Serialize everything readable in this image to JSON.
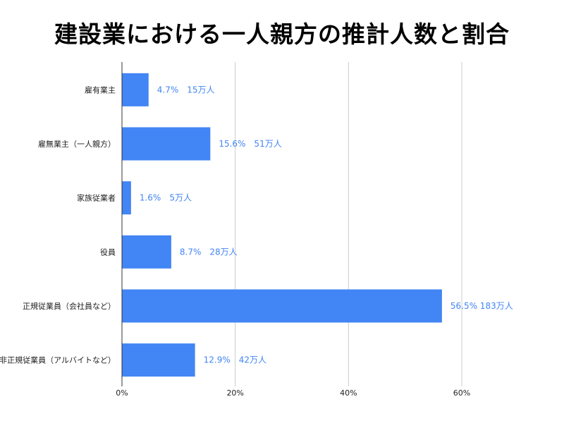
{
  "chart_data": {
    "type": "bar",
    "orientation": "horizontal",
    "title": "建設業における一人親方の推計人数と割合",
    "categories": [
      "雇有業主",
      "雇無業主（一人親方）",
      "家族従業者",
      "役員",
      "正規従業員（会社員など）",
      "非正規従業員（アルバイトなど）"
    ],
    "values": [
      4.7,
      15.6,
      1.6,
      8.7,
      56.5,
      12.9
    ],
    "data_labels": [
      "4.7%　15万人",
      "15.6%　51万人",
      "1.6%　5万人",
      "8.7%　28万人",
      "56.5% 183万人",
      "12.9%　42万人"
    ],
    "xlim": [
      0,
      60
    ],
    "xticks": [
      0,
      20,
      40,
      60
    ],
    "xtick_labels": [
      "0%",
      "20%",
      "40%",
      "60%"
    ],
    "xlabel": "",
    "ylabel": "",
    "grid": true,
    "legend": "none",
    "colors": {
      "bar": "#4285f4",
      "label": "#4285f4",
      "grid": "#cccccc"
    }
  }
}
